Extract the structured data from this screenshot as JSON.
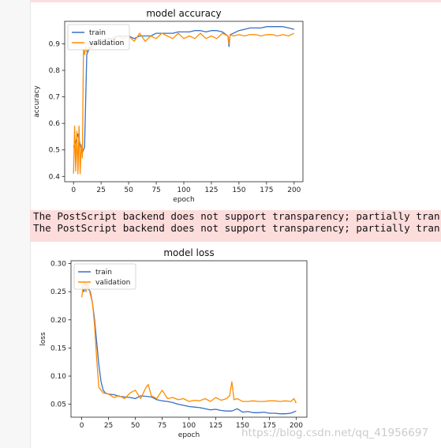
{
  "colors": {
    "train": "#3a6fc4",
    "validation": "#ff8c00",
    "warning_bg": "#fddcdc"
  },
  "warning": {
    "lines": [
      "The PostScript backend does not support transparency; partially tran",
      "The PostScript backend does not support transparency; partially tran"
    ]
  },
  "watermark": "https://blog.csdn.net/qq_41956697",
  "chart_data": [
    {
      "type": "line",
      "title": "model accuracy",
      "xlabel": "epoch",
      "ylabel": "accuracy",
      "xlim": [
        -8,
        208
      ],
      "ylim": [
        0.38,
        0.985
      ],
      "xticks": [
        0,
        25,
        50,
        75,
        100,
        125,
        150,
        175,
        200
      ],
      "yticks": [
        0.4,
        0.5,
        0.6,
        0.7,
        0.8,
        0.9
      ],
      "ytick_labels": [
        "0.4",
        "0.5",
        "0.6",
        "0.7",
        "0.8",
        "0.9"
      ],
      "legend": "top-left",
      "grid": false,
      "series": [
        {
          "name": "train",
          "x": [
            0,
            2,
            4,
            6,
            8,
            10,
            12,
            14,
            16,
            18,
            20,
            25,
            30,
            35,
            40,
            45,
            50,
            55,
            60,
            65,
            70,
            75,
            80,
            85,
            90,
            95,
            100,
            105,
            110,
            115,
            120,
            125,
            130,
            135,
            140,
            141,
            142,
            145,
            150,
            155,
            160,
            165,
            170,
            175,
            180,
            185,
            190,
            195,
            200
          ],
          "y": [
            0.51,
            0.53,
            0.56,
            0.52,
            0.49,
            0.51,
            0.86,
            0.88,
            0.89,
            0.9,
            0.91,
            0.91,
            0.92,
            0.92,
            0.93,
            0.93,
            0.93,
            0.92,
            0.93,
            0.93,
            0.93,
            0.94,
            0.94,
            0.94,
            0.94,
            0.945,
            0.945,
            0.945,
            0.95,
            0.95,
            0.945,
            0.95,
            0.95,
            0.945,
            0.93,
            0.89,
            0.935,
            0.94,
            0.95,
            0.955,
            0.96,
            0.96,
            0.96,
            0.965,
            0.965,
            0.965,
            0.965,
            0.96,
            0.955
          ]
        },
        {
          "name": "validation",
          "x": [
            0,
            1,
            2,
            3,
            4,
            5,
            6,
            7,
            8,
            9,
            10,
            11,
            12,
            14,
            16,
            18,
            20,
            25,
            30,
            35,
            40,
            45,
            50,
            55,
            60,
            65,
            70,
            75,
            80,
            85,
            90,
            95,
            100,
            105,
            110,
            115,
            120,
            125,
            130,
            135,
            140,
            141,
            142,
            145,
            150,
            155,
            160,
            165,
            170,
            175,
            180,
            185,
            190,
            195,
            200
          ],
          "y": [
            0.41,
            0.59,
            0.42,
            0.57,
            0.41,
            0.59,
            0.41,
            0.52,
            0.47,
            0.88,
            0.86,
            0.89,
            0.87,
            0.89,
            0.88,
            0.89,
            0.9,
            0.9,
            0.92,
            0.91,
            0.93,
            0.92,
            0.93,
            0.91,
            0.94,
            0.91,
            0.93,
            0.92,
            0.94,
            0.93,
            0.92,
            0.94,
            0.92,
            0.93,
            0.92,
            0.94,
            0.92,
            0.93,
            0.92,
            0.94,
            0.93,
            0.9,
            0.935,
            0.93,
            0.935,
            0.93,
            0.935,
            0.935,
            0.93,
            0.935,
            0.935,
            0.93,
            0.935,
            0.93,
            0.94
          ]
        }
      ]
    },
    {
      "type": "line",
      "title": "model loss",
      "xlabel": "epoch",
      "ylabel": "loss",
      "xlim": [
        -10,
        210
      ],
      "ylim": [
        0.027,
        0.305
      ],
      "xticks": [
        0,
        25,
        50,
        75,
        100,
        125,
        150,
        175,
        200
      ],
      "yticks": [
        0.05,
        0.1,
        0.15,
        0.2,
        0.25,
        0.3
      ],
      "ytick_labels": [
        "0.05",
        "0.10",
        "0.15",
        "0.20",
        "0.25",
        "0.30"
      ],
      "legend": "top-left",
      "grid": false,
      "series": [
        {
          "name": "train",
          "x": [
            0,
            2,
            4,
            6,
            8,
            10,
            12,
            14,
            16,
            18,
            20,
            22,
            25,
            30,
            35,
            40,
            45,
            50,
            55,
            60,
            65,
            70,
            75,
            80,
            85,
            90,
            95,
            100,
            105,
            110,
            115,
            120,
            125,
            130,
            135,
            140,
            145,
            150,
            155,
            160,
            165,
            170,
            175,
            180,
            185,
            190,
            195,
            200
          ],
          "y": [
            0.26,
            0.25,
            0.265,
            0.255,
            0.25,
            0.23,
            0.2,
            0.16,
            0.12,
            0.09,
            0.075,
            0.07,
            0.068,
            0.067,
            0.064,
            0.063,
            0.062,
            0.06,
            0.065,
            0.064,
            0.063,
            0.058,
            0.056,
            0.055,
            0.053,
            0.05,
            0.048,
            0.046,
            0.045,
            0.044,
            0.042,
            0.04,
            0.041,
            0.039,
            0.038,
            0.038,
            0.042,
            0.036,
            0.037,
            0.035,
            0.035,
            0.036,
            0.034,
            0.034,
            0.033,
            0.033,
            0.034,
            0.038
          ]
        },
        {
          "name": "validation",
          "x": [
            0,
            2,
            4,
            6,
            8,
            10,
            12,
            14,
            16,
            18,
            20,
            25,
            30,
            35,
            40,
            45,
            50,
            55,
            60,
            62,
            65,
            70,
            75,
            80,
            85,
            90,
            95,
            100,
            105,
            110,
            115,
            120,
            125,
            130,
            135,
            138,
            140,
            142,
            145,
            150,
            155,
            160,
            165,
            170,
            175,
            180,
            185,
            190,
            195,
            198,
            200
          ],
          "y": [
            0.24,
            0.27,
            0.25,
            0.265,
            0.245,
            0.23,
            0.19,
            0.13,
            0.08,
            0.075,
            0.07,
            0.068,
            0.062,
            0.065,
            0.06,
            0.07,
            0.075,
            0.06,
            0.08,
            0.085,
            0.065,
            0.06,
            0.075,
            0.06,
            0.062,
            0.058,
            0.06,
            0.055,
            0.057,
            0.056,
            0.06,
            0.055,
            0.062,
            0.057,
            0.06,
            0.065,
            0.09,
            0.058,
            0.06,
            0.055,
            0.055,
            0.056,
            0.055,
            0.055,
            0.056,
            0.056,
            0.055,
            0.056,
            0.055,
            0.06,
            0.052
          ]
        }
      ]
    }
  ]
}
